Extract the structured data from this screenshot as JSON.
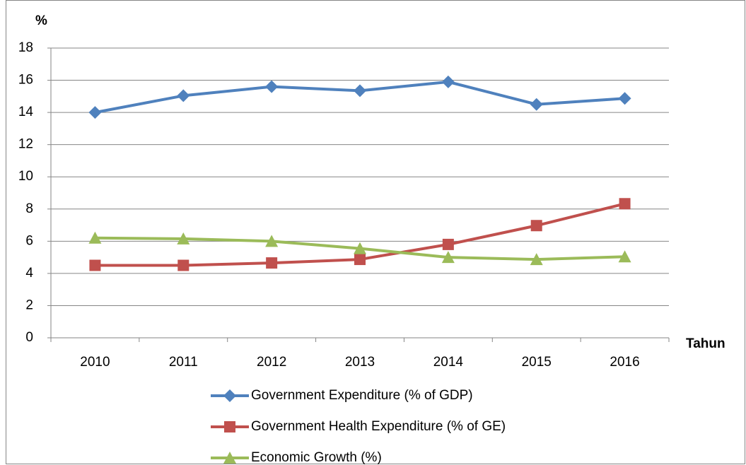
{
  "chart_data": {
    "type": "line",
    "y_label": "%",
    "x_label": "Tahun",
    "categories": [
      "2010",
      "2011",
      "2012",
      "2013",
      "2014",
      "2015",
      "2016"
    ],
    "series": [
      {
        "name": "Government Expenditure (% of GDP)",
        "color": "#4f81bd",
        "marker": "diamond",
        "values": [
          14.0,
          15.04,
          15.6,
          15.35,
          15.9,
          14.5,
          14.87
        ]
      },
      {
        "name": "Government Health Expenditure (% of GE)",
        "color": "#c0504d",
        "marker": "square",
        "values": [
          4.5,
          4.5,
          4.65,
          4.87,
          5.8,
          6.97,
          8.33
        ]
      },
      {
        "name": "Economic Growth (%)",
        "color": "#9bbb59",
        "marker": "triangle",
        "values": [
          6.2,
          6.15,
          6.0,
          5.55,
          5.0,
          4.87,
          5.04
        ]
      }
    ],
    "ylim": [
      0,
      18
    ],
    "yticks": [
      0,
      2,
      4,
      6,
      8,
      10,
      12,
      14,
      16,
      18
    ],
    "grid": true,
    "legend": "bottom"
  }
}
